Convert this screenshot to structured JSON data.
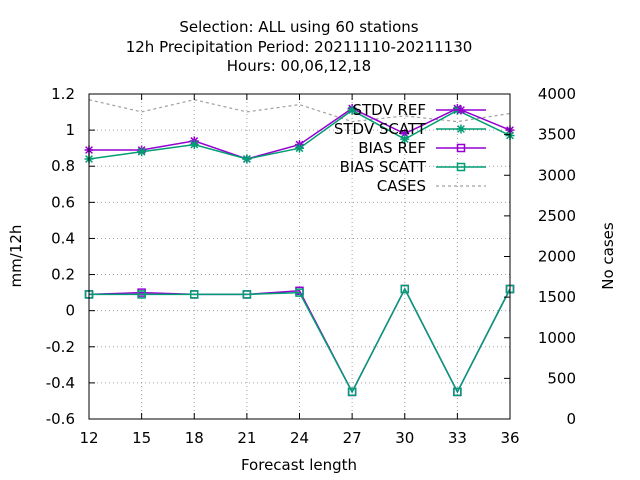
{
  "chart_data": {
    "type": "line",
    "title_lines": [
      "Selection: ALL using    60 stations",
      "12h Precipitation    Period: 20211110-20211130",
      "Hours:  00,06,12,18"
    ],
    "xlabel": "Forecast length",
    "ylabel": "mm/12h",
    "y2label": "No cases",
    "x": [
      12,
      15,
      18,
      21,
      24,
      27,
      30,
      33,
      36
    ],
    "xlim": [
      12,
      36
    ],
    "ylim": [
      -0.6,
      1.2
    ],
    "y2lim": [
      0,
      4000
    ],
    "xticks": [
      "12",
      "15",
      "18",
      "21",
      "24",
      "27",
      "30",
      "33",
      "36"
    ],
    "yticks": [
      "-0.6",
      "-0.4",
      "-0.2",
      "0",
      "0.2",
      "0.4",
      "0.6",
      "0.8",
      "1",
      "1.2"
    ],
    "y2ticks": [
      "0",
      "500",
      "1000",
      "1500",
      "2000",
      "2500",
      "3000",
      "3500",
      "4000"
    ],
    "grid": true,
    "legend_position": "top-right",
    "series": [
      {
        "name": "STDV REF",
        "axis": "y",
        "color": "#9400d3",
        "marker": "star",
        "dash": false,
        "values": [
          0.89,
          0.89,
          0.94,
          0.84,
          0.92,
          1.12,
          0.98,
          1.12,
          1.0
        ]
      },
      {
        "name": "STDV SCATT",
        "axis": "y",
        "color": "#009e73",
        "marker": "star",
        "dash": false,
        "values": [
          0.84,
          0.88,
          0.92,
          0.84,
          0.9,
          1.11,
          0.95,
          1.11,
          0.97
        ]
      },
      {
        "name": "BIAS REF",
        "axis": "y",
        "color": "#9400d3",
        "marker": "square",
        "dash": false,
        "values": [
          0.09,
          0.1,
          0.09,
          0.09,
          0.11,
          -0.45,
          0.12,
          -0.45,
          0.12
        ]
      },
      {
        "name": "BIAS SCATT",
        "axis": "y",
        "color": "#009e73",
        "marker": "square",
        "dash": false,
        "values": [
          0.09,
          0.09,
          0.09,
          0.09,
          0.1,
          -0.45,
          0.12,
          -0.45,
          0.12
        ]
      },
      {
        "name": "CASES",
        "axis": "y2",
        "color": "#a0a0a0",
        "marker": "none",
        "dash": true,
        "values": [
          3930,
          3780,
          3930,
          3780,
          3870,
          3660,
          3730,
          3660,
          3760
        ]
      }
    ]
  }
}
